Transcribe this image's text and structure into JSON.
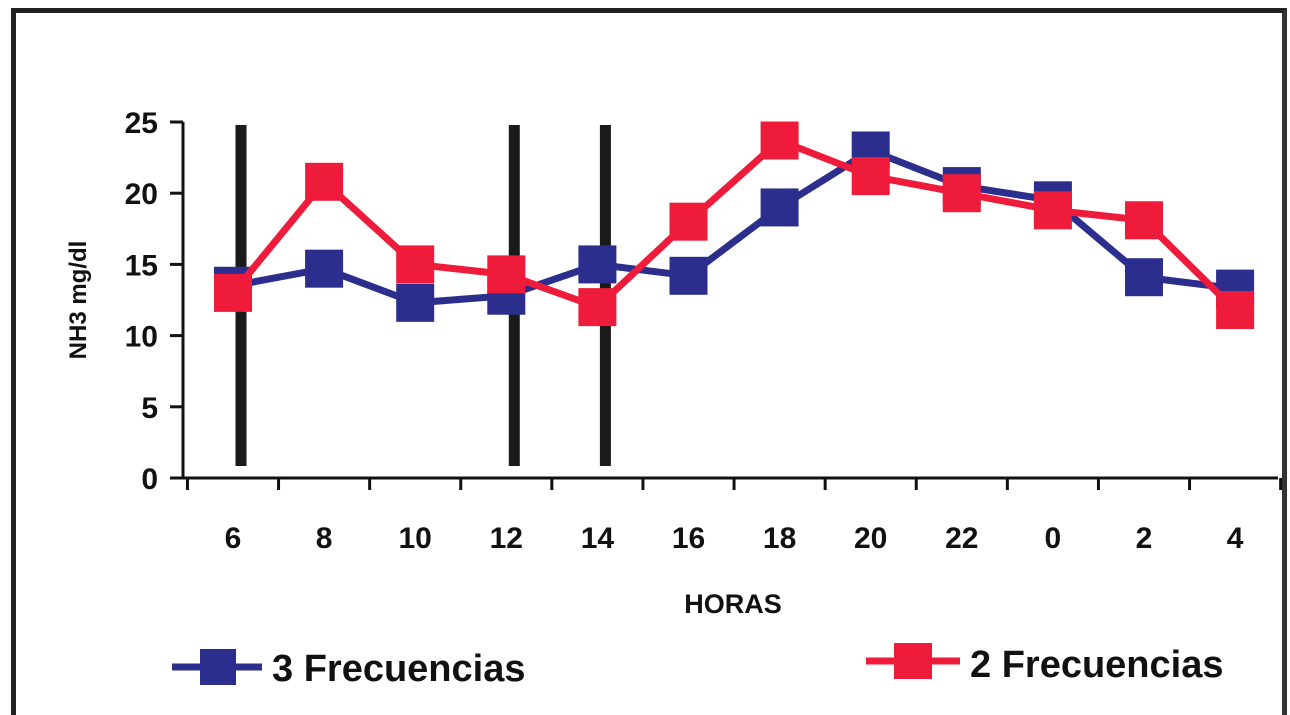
{
  "chart_data": {
    "type": "line",
    "title": "",
    "xlabel": "HORAS",
    "ylabel": "NH3 mg/dl",
    "categories": [
      "6",
      "8",
      "10",
      "12",
      "14",
      "16",
      "18",
      "20",
      "22",
      "0",
      "2",
      "4"
    ],
    "yticks": [
      "0",
      "5",
      "10",
      "15",
      "20",
      "25"
    ],
    "ylim": [
      0,
      25
    ],
    "grid": false,
    "legend_position": "bottom",
    "vertical_markers_at": [
      "6",
      "12",
      "14"
    ],
    "series": [
      {
        "name": "3 Frecuencias",
        "color": "#2b2e8c",
        "marker": "square",
        "values": [
          13.5,
          14.7,
          12.3,
          12.8,
          15.0,
          14.2,
          19.0,
          23.0,
          20.5,
          19.5,
          14.1,
          13.3
        ]
      },
      {
        "name": "2 Frecuencias",
        "color": "#ee1c3a",
        "marker": "square",
        "values": [
          13.0,
          20.8,
          15.0,
          14.3,
          12.0,
          18.0,
          23.7,
          21.2,
          20.0,
          18.8,
          18.1,
          11.8
        ]
      }
    ]
  }
}
